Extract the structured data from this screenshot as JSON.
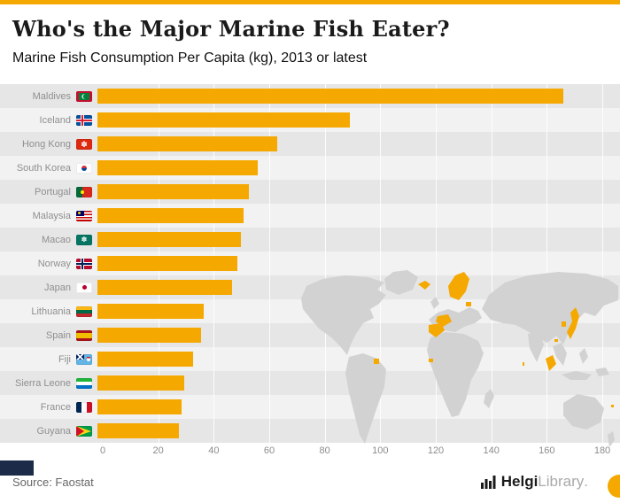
{
  "page": {
    "title": "Who's the Major Marine Fish Eater?",
    "subtitle": "Marine Fish Consumption Per Capita (kg), 2013 or latest",
    "source": "Source: Faostat",
    "brand": {
      "bold": "Helgi",
      "light": "Library",
      "dot": "."
    }
  },
  "colors": {
    "accent": "#F5A800",
    "bar": "#F5A800",
    "map_gray": "#D2D2D2",
    "row_dark": "#E6E6E6",
    "row_light": "#F2F2F2",
    "label_gray": "#8F8F8F",
    "corner_tag_navy": "#1C2B47"
  },
  "chart_data": {
    "type": "bar",
    "orientation": "horizontal",
    "title": "Who's the Major Marine Fish Eater?",
    "subtitle": "Marine Fish Consumption Per Capita (kg), 2013 or latest",
    "xlabel": "",
    "ylabel": "",
    "xlim": [
      0,
      180
    ],
    "xticks": [
      0,
      20,
      40,
      60,
      80,
      100,
      120,
      140,
      160,
      180
    ],
    "grid": true,
    "legend": false,
    "bar_color": "#F5A800",
    "categories": [
      "Maldives",
      "Iceland",
      "Hong Kong",
      "South Korea",
      "Portugal",
      "Malaysia",
      "Macao",
      "Norway",
      "Japan",
      "Lithuania",
      "Spain",
      "Fiji",
      "Sierra Leone",
      "France",
      "Guyana"
    ],
    "values": [
      166,
      90,
      64,
      57,
      54,
      52,
      51,
      50,
      48,
      38,
      37,
      34,
      31,
      30,
      29
    ],
    "flags": [
      "maldives",
      "iceland",
      "hong-kong",
      "south-korea",
      "portugal",
      "malaysia",
      "macao",
      "norway",
      "japan",
      "lithuania",
      "spain",
      "fiji",
      "sierra-leone",
      "france",
      "guyana"
    ],
    "background_watermark": "world-map with listed countries highlighted in accent color"
  }
}
